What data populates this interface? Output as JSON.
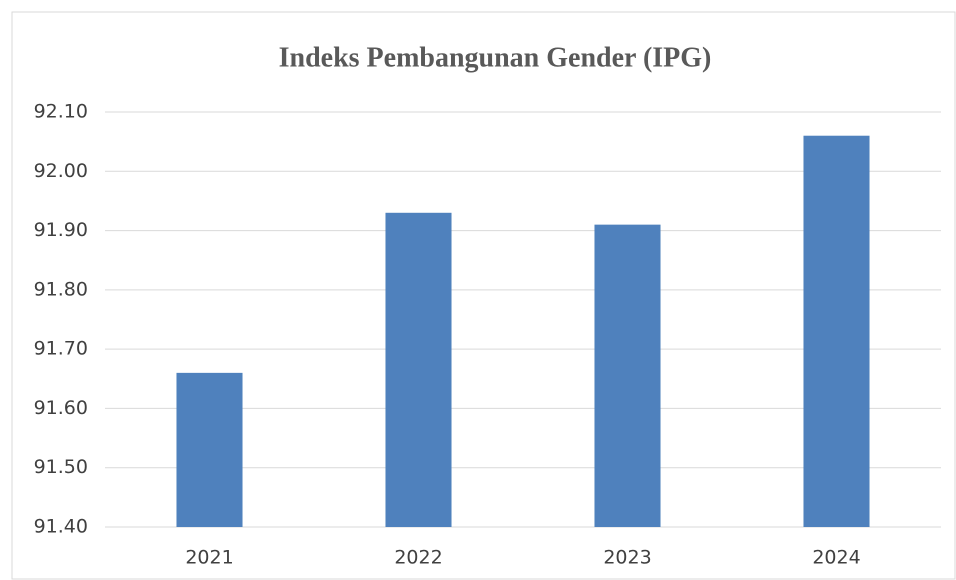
{
  "chart_data": {
    "type": "bar",
    "title": "Indeks Pembangunan Gender (IPG)",
    "categories": [
      "2021",
      "2022",
      "2023",
      "2024"
    ],
    "values": [
      91.66,
      91.93,
      91.91,
      92.06
    ],
    "color": "#4f81bd",
    "ylim": [
      91.4,
      92.1
    ],
    "yticks": [
      {
        "value": 91.4,
        "label": "91.40"
      },
      {
        "value": 91.5,
        "label": "91.50"
      },
      {
        "value": 91.6,
        "label": "91.60"
      },
      {
        "value": 91.7,
        "label": "91.70"
      },
      {
        "value": 91.8,
        "label": "91.80"
      },
      {
        "value": 91.9,
        "label": "91.90"
      },
      {
        "value": 92.0,
        "label": "92.00"
      },
      {
        "value": 92.1,
        "label": "92.10"
      }
    ],
    "grid": true
  }
}
